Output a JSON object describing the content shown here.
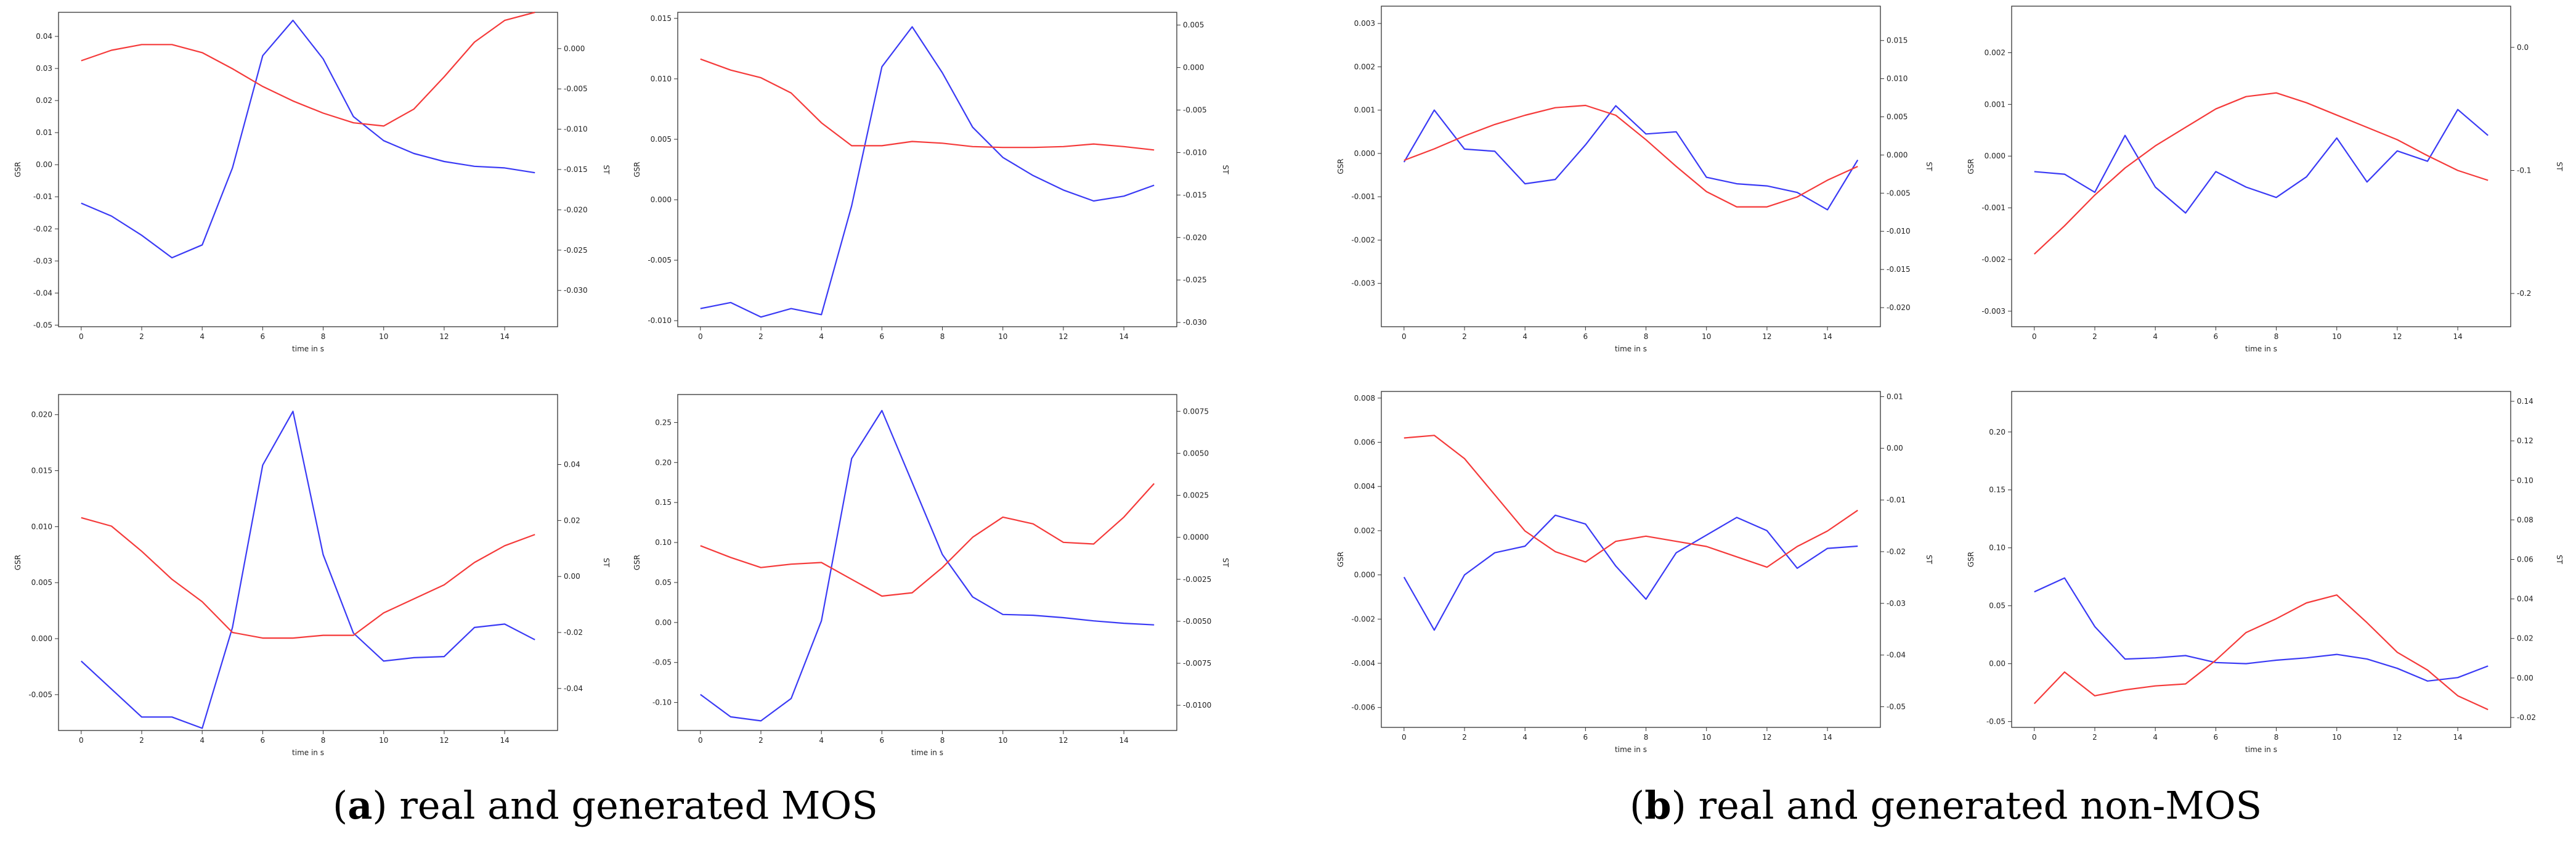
{
  "captions": [
    {
      "letter": "a",
      "text": ") real and generated MOS",
      "open": "("
    },
    {
      "letter": "b",
      "text": ") real and generated non-MOS",
      "open": "("
    }
  ],
  "colors": {
    "gsr": "#3a3af5",
    "st": "#f53a3a",
    "axis": "#333333"
  },
  "chart_data": [
    {
      "type": "line",
      "panel": "a1",
      "xlabel": "time in s",
      "ylabel": "GSR",
      "y2label": "ST",
      "x": [
        0,
        1,
        2,
        3,
        4,
        5,
        6,
        7,
        8,
        9,
        10,
        11,
        12,
        13,
        14,
        15
      ],
      "xticks": [
        0,
        2,
        4,
        6,
        8,
        10,
        12,
        14
      ],
      "xlim": [
        -0.75,
        15.75
      ],
      "ylim": [
        -0.0505,
        0.0475
      ],
      "yticks": [
        -0.05,
        -0.04,
        -0.03,
        -0.02,
        -0.01,
        0.0,
        0.01,
        0.02,
        0.03,
        0.04
      ],
      "yticklabels": [
        "-0.05",
        "-0.04",
        "-0.03",
        "-0.02",
        "-0.01",
        "0.00",
        "0.01",
        "0.02",
        "0.03",
        "0.04"
      ],
      "y2lim": [
        -0.0345,
        0.0045
      ],
      "y2ticks": [
        -0.03,
        -0.025,
        -0.02,
        -0.015,
        -0.01,
        -0.005,
        0.0
      ],
      "y2ticklabels": [
        "-0.030",
        "-0.025",
        "-0.020",
        "-0.015",
        "-0.010",
        "-0.005",
        "0.000"
      ],
      "series": [
        {
          "name": "GSR",
          "axis": "left",
          "color": "blue",
          "values": [
            -0.012,
            -0.016,
            -0.022,
            -0.029,
            -0.025,
            -0.001,
            0.034,
            0.045,
            0.033,
            0.015,
            0.0075,
            0.0035,
            0.001,
            -0.0005,
            -0.001,
            -0.0025
          ]
        },
        {
          "name": "ST",
          "axis": "right",
          "color": "red",
          "values": [
            -0.0015,
            -0.0002,
            0.0005,
            0.0005,
            -0.0005,
            -0.0025,
            -0.0047,
            -0.0065,
            -0.008,
            -0.0092,
            -0.0096,
            -0.0075,
            -0.0035,
            0.0008,
            0.0035,
            0.0045
          ]
        }
      ]
    },
    {
      "type": "line",
      "panel": "a2",
      "xlabel": "",
      "ylabel": "GSR",
      "y2label": "ST",
      "x": [
        0,
        1,
        2,
        3,
        4,
        5,
        6,
        7,
        8,
        9,
        10,
        11,
        12,
        13,
        14,
        15
      ],
      "xticks": [
        0,
        2,
        4,
        6,
        8,
        10,
        12,
        14
      ],
      "xlim": [
        -0.75,
        15.75
      ],
      "ylim": [
        -0.0105,
        0.0155
      ],
      "yticks": [
        -0.01,
        -0.005,
        0.0,
        0.005,
        0.01,
        0.015
      ],
      "yticklabels": [
        "-0.010",
        "-0.005",
        "0.000",
        "0.005",
        "0.010",
        "0.015"
      ],
      "y2lim": [
        -0.0305,
        0.0065
      ],
      "y2ticks": [
        -0.03,
        -0.025,
        -0.02,
        -0.015,
        -0.01,
        -0.005,
        0.0,
        0.005
      ],
      "y2ticklabels": [
        "-0.030",
        "-0.025",
        "-0.020",
        "-0.015",
        "-0.010",
        "-0.005",
        "0.000",
        "0.005"
      ],
      "series": [
        {
          "name": "GSR",
          "axis": "left",
          "color": "blue",
          "values": [
            -0.009,
            -0.0085,
            -0.0097,
            -0.009,
            -0.0095,
            -0.0005,
            0.011,
            0.0143,
            0.0105,
            0.006,
            0.0035,
            0.002,
            0.0008,
            -0.0001,
            0.0003,
            0.0012
          ]
        },
        {
          "name": "ST",
          "axis": "right",
          "color": "red",
          "values": [
            0.001,
            -0.0003,
            -0.0012,
            -0.003,
            -0.0065,
            -0.0092,
            -0.0092,
            -0.0087,
            -0.0089,
            -0.0093,
            -0.0094,
            -0.0094,
            -0.0093,
            -0.009,
            -0.0093,
            -0.0097
          ]
        }
      ]
    },
    {
      "type": "line",
      "panel": "b1",
      "xlabel": "time in s",
      "ylabel": "GSR",
      "y2label": "ST",
      "x": [
        0,
        1,
        2,
        3,
        4,
        5,
        6,
        7,
        8,
        9,
        10,
        11,
        12,
        13,
        14,
        15
      ],
      "xticks": [
        0,
        2,
        4,
        6,
        8,
        10,
        12,
        14
      ],
      "xlim": [
        -0.75,
        15.75
      ],
      "ylim": [
        -0.004,
        0.0034
      ],
      "yticks": [
        -0.003,
        -0.002,
        -0.001,
        0.0,
        0.001,
        0.002,
        0.003
      ],
      "yticklabels": [
        "-0.003",
        "-0.002",
        "-0.001",
        "0.000",
        "0.001",
        "0.002",
        "0.003"
      ],
      "y2lim": [
        -0.0225,
        0.0195
      ],
      "y2ticks": [
        -0.02,
        -0.015,
        -0.01,
        -0.005,
        0.0,
        0.005,
        0.01,
        0.015
      ],
      "y2ticklabels": [
        "-0.020",
        "-0.015",
        "-0.010",
        "-0.005",
        "0.000",
        "0.005",
        "0.010",
        "0.015"
      ],
      "series": [
        {
          "name": "GSR",
          "axis": "left",
          "color": "blue",
          "values": [
            -0.0002,
            0.001,
            0.0001,
            5e-05,
            -0.0007,
            -0.0006,
            0.0002,
            0.0011,
            0.00045,
            0.0005,
            -0.00055,
            -0.0007,
            -0.00075,
            -0.0009,
            -0.0013,
            -0.00015
          ]
        },
        {
          "name": "ST",
          "axis": "right",
          "color": "red",
          "values": [
            -0.0007,
            0.0008,
            0.0025,
            0.004,
            0.0052,
            0.0062,
            0.0065,
            0.0052,
            0.002,
            -0.0015,
            -0.0048,
            -0.0068,
            -0.0068,
            -0.0055,
            -0.0033,
            -0.0015
          ]
        }
      ]
    },
    {
      "type": "line",
      "panel": "b2",
      "xlabel": "time in s",
      "ylabel": "GSR",
      "y2label": "ST",
      "x": [
        0,
        1,
        2,
        3,
        4,
        5,
        6,
        7,
        8,
        9,
        10,
        11,
        12,
        13,
        14,
        15
      ],
      "xticks": [
        0,
        2,
        4,
        6,
        8,
        10,
        12,
        14
      ],
      "xlim": [
        -0.75,
        15.75
      ],
      "ylim": [
        -0.0033,
        0.0029
      ],
      "yticks": [
        -0.003,
        -0.002,
        -0.001,
        0.0,
        0.001,
        0.002
      ],
      "yticklabels": [
        "-0.003",
        "-0.002",
        "-0.001",
        "0.000",
        "0.001",
        "0.002"
      ],
      "y2lim": [
        -0.227,
        0.0335
      ],
      "y2ticks": [
        -0.2,
        -0.1,
        0.0
      ],
      "y2ticklabels": [
        "-0.2",
        "-0.1",
        "0.0"
      ],
      "series": [
        {
          "name": "GSR",
          "axis": "left",
          "color": "blue",
          "values": [
            -0.0003,
            -0.00035,
            -0.0007,
            0.0004,
            -0.0006,
            -0.0011,
            -0.0003,
            -0.0006,
            -0.0008,
            -0.0004,
            0.00035,
            -0.0005,
            0.0001,
            -0.0001,
            0.0009,
            0.0004
          ]
        },
        {
          "name": "ST",
          "axis": "right",
          "color": "red",
          "values": [
            -0.168,
            -0.145,
            -0.12,
            -0.098,
            -0.08,
            -0.065,
            -0.05,
            -0.04,
            -0.037,
            -0.045,
            -0.055,
            -0.065,
            -0.075,
            -0.088,
            -0.1,
            -0.108
          ]
        }
      ]
    },
    {
      "type": "line",
      "panel": "a3",
      "xlabel": "time in s",
      "ylabel": "GSR",
      "y2label": "ST",
      "x": [
        0,
        1,
        2,
        3,
        4,
        5,
        6,
        7,
        8,
        9,
        10,
        11,
        12,
        13,
        14,
        15
      ],
      "xticks": [
        0,
        2,
        4,
        6,
        8,
        10,
        12,
        14
      ],
      "xlim": [
        -0.75,
        15.75
      ],
      "ylim": [
        -0.0082,
        0.0218
      ],
      "yticks": [
        -0.005,
        0.0,
        0.005,
        0.01,
        0.015,
        0.02
      ],
      "yticklabels": [
        "-0.005",
        "0.000",
        "0.005",
        "0.010",
        "0.015",
        "0.020"
      ],
      "y2lim": [
        -0.055,
        0.065
      ],
      "y2ticks": [
        -0.04,
        -0.02,
        0.0,
        0.02,
        0.04
      ],
      "y2ticklabels": [
        "-0.04",
        "-0.02",
        "0.00",
        "0.02",
        "0.04"
      ],
      "series": [
        {
          "name": "GSR",
          "axis": "left",
          "color": "blue",
          "values": [
            -0.002,
            -0.0045,
            -0.007,
            -0.007,
            -0.008,
            0.001,
            0.0155,
            0.0203,
            0.0075,
            0.0005,
            -0.002,
            -0.0017,
            -0.0016,
            0.001,
            0.0013,
            -0.0001
          ]
        },
        {
          "name": "ST",
          "axis": "right",
          "color": "red",
          "values": [
            0.021,
            0.018,
            0.009,
            -0.001,
            -0.009,
            -0.02,
            -0.022,
            -0.022,
            -0.021,
            -0.021,
            -0.013,
            -0.008,
            -0.003,
            0.005,
            0.011,
            0.015
          ]
        }
      ]
    },
    {
      "type": "line",
      "panel": "a4",
      "xlabel": "time in s",
      "ylabel": "GSR",
      "y2label": "ST",
      "x": [
        0,
        1,
        2,
        3,
        4,
        5,
        6,
        7,
        8,
        9,
        10,
        11,
        12,
        13,
        14,
        15
      ],
      "xticks": [
        0,
        2,
        4,
        6,
        8,
        10,
        12,
        14
      ],
      "xlim": [
        -0.75,
        15.75
      ],
      "ylim": [
        -0.135,
        0.285
      ],
      "yticks": [
        -0.1,
        -0.05,
        0.0,
        0.05,
        0.1,
        0.15,
        0.2,
        0.25
      ],
      "yticklabels": [
        "-0.10",
        "-0.05",
        "0.00",
        "0.05",
        "0.10",
        "0.15",
        "0.20",
        "0.25"
      ],
      "y2lim": [
        -0.0115,
        0.0085
      ],
      "y2ticks": [
        -0.01,
        -0.0075,
        -0.005,
        -0.0025,
        0.0,
        0.0025,
        0.005,
        0.0075
      ],
      "y2ticklabels": [
        "-0.0100",
        "-0.0075",
        "-0.0050",
        "-0.0025",
        "0.0000",
        "0.0025",
        "0.0050",
        "0.0075"
      ],
      "series": [
        {
          "name": "GSR",
          "axis": "left",
          "color": "blue",
          "values": [
            -0.09,
            -0.118,
            -0.123,
            -0.095,
            0.002,
            0.205,
            0.265,
            0.175,
            0.085,
            0.032,
            0.01,
            0.009,
            0.006,
            0.002,
            -0.001,
            -0.003
          ]
        },
        {
          "name": "ST",
          "axis": "right",
          "color": "red",
          "values": [
            -0.0005,
            -0.0012,
            -0.0018,
            -0.0016,
            -0.0015,
            -0.0025,
            -0.0035,
            -0.0033,
            -0.0018,
            0.0,
            0.0012,
            0.0008,
            -0.0003,
            -0.0004,
            0.0012,
            0.0032
          ]
        }
      ]
    },
    {
      "type": "line",
      "panel": "b3",
      "xlabel": "time in s",
      "ylabel": "GSR",
      "y2label": "ST",
      "x": [
        0,
        1,
        2,
        3,
        4,
        5,
        6,
        7,
        8,
        9,
        10,
        11,
        12,
        13,
        14,
        15
      ],
      "xticks": [
        0,
        2,
        4,
        6,
        8,
        10,
        12,
        14
      ],
      "xlim": [
        -0.75,
        15.75
      ],
      "ylim": [
        -0.0069,
        0.0083
      ],
      "yticks": [
        -0.006,
        -0.004,
        -0.002,
        0.0,
        0.002,
        0.004,
        0.006,
        0.008
      ],
      "yticklabels": [
        "-0.006",
        "-0.004",
        "-0.002",
        "0.000",
        "0.002",
        "0.004",
        "0.006",
        "0.008"
      ],
      "y2lim": [
        -0.054,
        0.011
      ],
      "y2ticks": [
        -0.05,
        -0.04,
        -0.03,
        -0.02,
        -0.01,
        0.0,
        0.01
      ],
      "y2ticklabels": [
        "-0.05",
        "-0.04",
        "-0.03",
        "-0.02",
        "-0.01",
        "0.00",
        "0.01"
      ],
      "series": [
        {
          "name": "GSR",
          "axis": "left",
          "color": "blue",
          "values": [
            -0.0001,
            -0.0025,
            0.0,
            0.001,
            0.0013,
            0.0027,
            0.0023,
            0.0004,
            -0.0011,
            0.001,
            0.0018,
            0.0026,
            0.002,
            0.0003,
            0.0012,
            0.0013
          ]
        },
        {
          "name": "ST",
          "axis": "right",
          "color": "red",
          "values": [
            0.002,
            0.0025,
            -0.002,
            -0.009,
            -0.016,
            -0.02,
            -0.022,
            -0.018,
            -0.017,
            -0.018,
            -0.019,
            -0.021,
            -0.023,
            -0.019,
            -0.016,
            -0.012
          ]
        }
      ]
    },
    {
      "type": "line",
      "panel": "b4",
      "xlabel": "time in s",
      "ylabel": "GSR",
      "y2label": "ST",
      "x": [
        0,
        1,
        2,
        3,
        4,
        5,
        6,
        7,
        8,
        9,
        10,
        11,
        12,
        13,
        14,
        15
      ],
      "xticks": [
        0,
        2,
        4,
        6,
        8,
        10,
        12,
        14
      ],
      "xlim": [
        -0.75,
        15.75
      ],
      "ylim": [
        -0.055,
        0.235
      ],
      "yticks": [
        -0.05,
        0.0,
        0.05,
        0.1,
        0.15,
        0.2
      ],
      "yticklabels": [
        "-0.05",
        "0.00",
        "0.05",
        "0.10",
        "0.15",
        "0.20"
      ],
      "y2lim": [
        -0.025,
        0.145
      ],
      "y2ticks": [
        -0.02,
        0.0,
        0.02,
        0.04,
        0.06,
        0.08,
        0.1,
        0.12,
        0.14
      ],
      "y2ticklabels": [
        "-0.02",
        "0.00",
        "0.02",
        "0.04",
        "0.06",
        "0.08",
        "0.10",
        "0.12",
        "0.14"
      ],
      "series": [
        {
          "name": "GSR",
          "axis": "left",
          "color": "blue",
          "values": [
            0.062,
            0.074,
            0.032,
            0.004,
            0.005,
            0.007,
            0.001,
            0.0,
            0.003,
            0.005,
            0.008,
            0.004,
            -0.004,
            -0.015,
            -0.012,
            -0.002
          ]
        },
        {
          "name": "ST",
          "axis": "right",
          "color": "red",
          "values": [
            -0.013,
            0.003,
            -0.009,
            -0.006,
            -0.004,
            -0.003,
            0.009,
            0.023,
            0.03,
            0.038,
            0.042,
            0.028,
            0.013,
            0.004,
            -0.009,
            -0.016
          ]
        }
      ]
    }
  ]
}
